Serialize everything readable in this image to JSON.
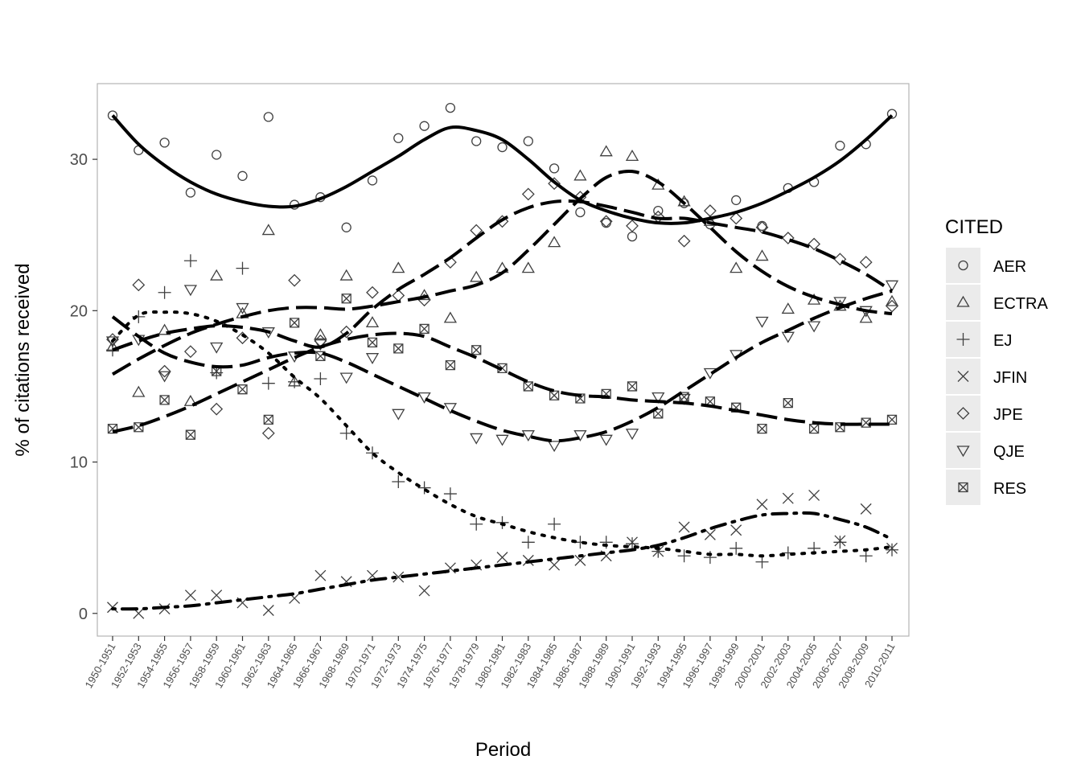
{
  "chart_data": {
    "type": "scatter",
    "xlabel": "Period",
    "ylabel": "% of citations received",
    "legend_title": "CITED",
    "legend_position": "right",
    "grid": false,
    "ylim": [
      -1.5,
      35
    ],
    "y_ticks": [
      0,
      10,
      20,
      30
    ],
    "categories": [
      "1950-1951",
      "1952-1953",
      "1954-1955",
      "1956-1957",
      "1958-1959",
      "1960-1961",
      "1962-1963",
      "1964-1965",
      "1966-1967",
      "1968-1969",
      "1970-1971",
      "1972-1973",
      "1974-1975",
      "1976-1977",
      "1978-1979",
      "1980-1981",
      "1982-1983",
      "1984-1985",
      "1986-1987",
      "1988-1989",
      "1990-1991",
      "1992-1993",
      "1994-1995",
      "1996-1997",
      "1998-1999",
      "2000-2001",
      "2002-2003",
      "2004-2005",
      "2006-2007",
      "2008-2009",
      "2010-2011"
    ],
    "series": [
      {
        "name": "AER",
        "shape": "circle",
        "line_dash": "solid",
        "points": [
          32.9,
          30.6,
          31.1,
          27.8,
          30.3,
          28.9,
          32.8,
          27.0,
          27.5,
          25.5,
          28.6,
          31.4,
          32.2,
          33.4,
          31.2,
          30.8,
          31.2,
          29.4,
          26.5,
          25.8,
          24.9,
          26.6,
          27.1,
          25.7,
          27.3,
          25.6,
          28.1,
          28.5,
          30.9,
          31.0,
          33.0
        ],
        "smooth": [
          32.9,
          31.0,
          29.6,
          28.5,
          27.7,
          27.2,
          26.9,
          26.9,
          27.4,
          28.2,
          29.2,
          30.2,
          31.3,
          32.1,
          31.9,
          31.3,
          30.0,
          28.5,
          27.3,
          26.6,
          26.1,
          25.8,
          25.8,
          26.1,
          26.5,
          27.1,
          27.9,
          28.8,
          29.9,
          31.3,
          32.9
        ]
      },
      {
        "name": "ECTRA",
        "shape": "triangle-up",
        "line_dash": "long-dash",
        "points": [
          17.6,
          14.6,
          18.7,
          14.0,
          22.3,
          19.8,
          25.3,
          15.3,
          18.4,
          22.3,
          19.2,
          22.8,
          21.0,
          19.5,
          22.2,
          22.8,
          22.8,
          24.5,
          28.9,
          30.5,
          30.2,
          28.3,
          27.2,
          25.9,
          22.8,
          23.6,
          20.1,
          20.7,
          20.3,
          19.5,
          20.6
        ],
        "smooth": [
          15.8,
          16.8,
          17.7,
          18.5,
          19.1,
          19.6,
          20.0,
          20.2,
          20.2,
          20.1,
          20.3,
          20.6,
          20.9,
          21.3,
          21.7,
          22.5,
          24.0,
          25.7,
          27.4,
          28.8,
          29.2,
          28.5,
          27.1,
          25.5,
          23.9,
          22.6,
          21.6,
          20.9,
          20.4,
          20.0,
          19.8
        ]
      },
      {
        "name": "EJ",
        "shape": "plus",
        "line_dash": "dotted",
        "points": [
          17.4,
          19.6,
          21.2,
          23.3,
          15.9,
          22.8,
          15.2,
          15.3,
          15.5,
          11.9,
          10.6,
          8.7,
          8.3,
          7.9,
          5.9,
          6.0,
          4.7,
          5.9,
          4.7,
          4.7,
          4.6,
          4.1,
          3.8,
          3.7,
          4.3,
          3.4,
          4.0,
          4.3,
          4.7,
          3.8,
          4.2
        ],
        "smooth": [
          18.0,
          19.7,
          19.9,
          19.8,
          19.3,
          18.4,
          17.2,
          15.6,
          14.2,
          12.4,
          10.6,
          9.3,
          8.2,
          7.2,
          6.4,
          5.9,
          5.4,
          5.0,
          4.7,
          4.5,
          4.4,
          4.3,
          4.1,
          3.9,
          3.9,
          3.8,
          3.9,
          4.0,
          4.1,
          4.2,
          4.4
        ]
      },
      {
        "name": "JFIN",
        "shape": "x",
        "line_dash": "dot-dash",
        "points": [
          0.4,
          0.0,
          0.3,
          1.2,
          1.2,
          0.7,
          0.2,
          1.0,
          2.5,
          2.1,
          2.5,
          2.4,
          1.5,
          3.0,
          3.2,
          3.7,
          3.5,
          3.2,
          3.5,
          3.8,
          4.7,
          4.1,
          5.7,
          5.2,
          5.5,
          7.2,
          7.6,
          7.8,
          4.8,
          6.9,
          4.3
        ],
        "smooth": [
          0.3,
          0.3,
          0.4,
          0.5,
          0.7,
          0.9,
          1.1,
          1.3,
          1.6,
          1.9,
          2.2,
          2.4,
          2.6,
          2.8,
          3.0,
          3.2,
          3.4,
          3.6,
          3.8,
          4.0,
          4.2,
          4.5,
          5.0,
          5.6,
          6.1,
          6.5,
          6.6,
          6.6,
          6.2,
          5.7,
          4.9
        ]
      },
      {
        "name": "JPE",
        "shape": "diamond",
        "line_dash": "long-dash",
        "points": [
          18.1,
          21.7,
          16.0,
          17.3,
          13.5,
          18.2,
          11.9,
          22.0,
          18.0,
          18.6,
          21.2,
          21.0,
          20.7,
          23.2,
          25.3,
          25.9,
          27.7,
          28.4,
          27.5,
          25.9,
          25.6,
          26.2,
          24.6,
          26.6,
          26.1,
          25.5,
          24.8,
          24.4,
          23.4,
          23.2,
          20.3
        ],
        "smooth": [
          17.4,
          18.0,
          18.5,
          18.8,
          19.0,
          18.9,
          18.6,
          18.0,
          17.6,
          18.5,
          20.1,
          21.4,
          22.4,
          23.5,
          24.8,
          26.0,
          26.8,
          27.2,
          27.2,
          26.9,
          26.5,
          26.1,
          26.1,
          25.8,
          25.5,
          25.2,
          24.7,
          24.1,
          23.3,
          22.4,
          21.3
        ]
      },
      {
        "name": "QJE",
        "shape": "triangle-down",
        "line_dash": "long-dash",
        "points": [
          18.0,
          18.1,
          15.7,
          21.4,
          17.6,
          20.2,
          18.6,
          17.0,
          17.8,
          15.6,
          16.9,
          13.2,
          14.3,
          13.6,
          11.6,
          11.5,
          11.8,
          11.1,
          11.8,
          11.5,
          11.9,
          14.3,
          14.2,
          15.9,
          17.1,
          19.3,
          18.3,
          19.0,
          20.6,
          20.0,
          21.7
        ],
        "smooth": [
          19.6,
          18.3,
          17.2,
          16.6,
          16.3,
          16.4,
          16.9,
          17.2,
          17.2,
          16.6,
          15.8,
          15.0,
          14.2,
          13.4,
          12.7,
          12.1,
          11.7,
          11.4,
          11.6,
          12.0,
          12.7,
          13.6,
          14.7,
          15.8,
          16.9,
          17.9,
          18.7,
          19.5,
          20.2,
          20.8,
          21.3
        ]
      },
      {
        "name": "RES",
        "shape": "square-x",
        "line_dash": "long-dash",
        "points": [
          12.2,
          12.3,
          14.1,
          11.8,
          16.0,
          14.8,
          12.8,
          19.2,
          17.0,
          20.8,
          17.9,
          17.5,
          18.8,
          16.4,
          17.4,
          16.2,
          15.0,
          14.4,
          14.2,
          14.5,
          15.0,
          13.2,
          14.3,
          14.0,
          13.6,
          12.2,
          13.9,
          12.2,
          12.3,
          12.6,
          12.8
        ],
        "smooth": [
          12.0,
          12.4,
          13.0,
          13.7,
          14.5,
          15.3,
          16.1,
          16.9,
          17.6,
          18.1,
          18.4,
          18.5,
          18.3,
          17.6,
          16.9,
          16.1,
          15.3,
          14.7,
          14.4,
          14.3,
          14.1,
          14.0,
          13.9,
          13.7,
          13.4,
          13.1,
          12.8,
          12.6,
          12.5,
          12.5,
          12.5
        ]
      }
    ]
  }
}
